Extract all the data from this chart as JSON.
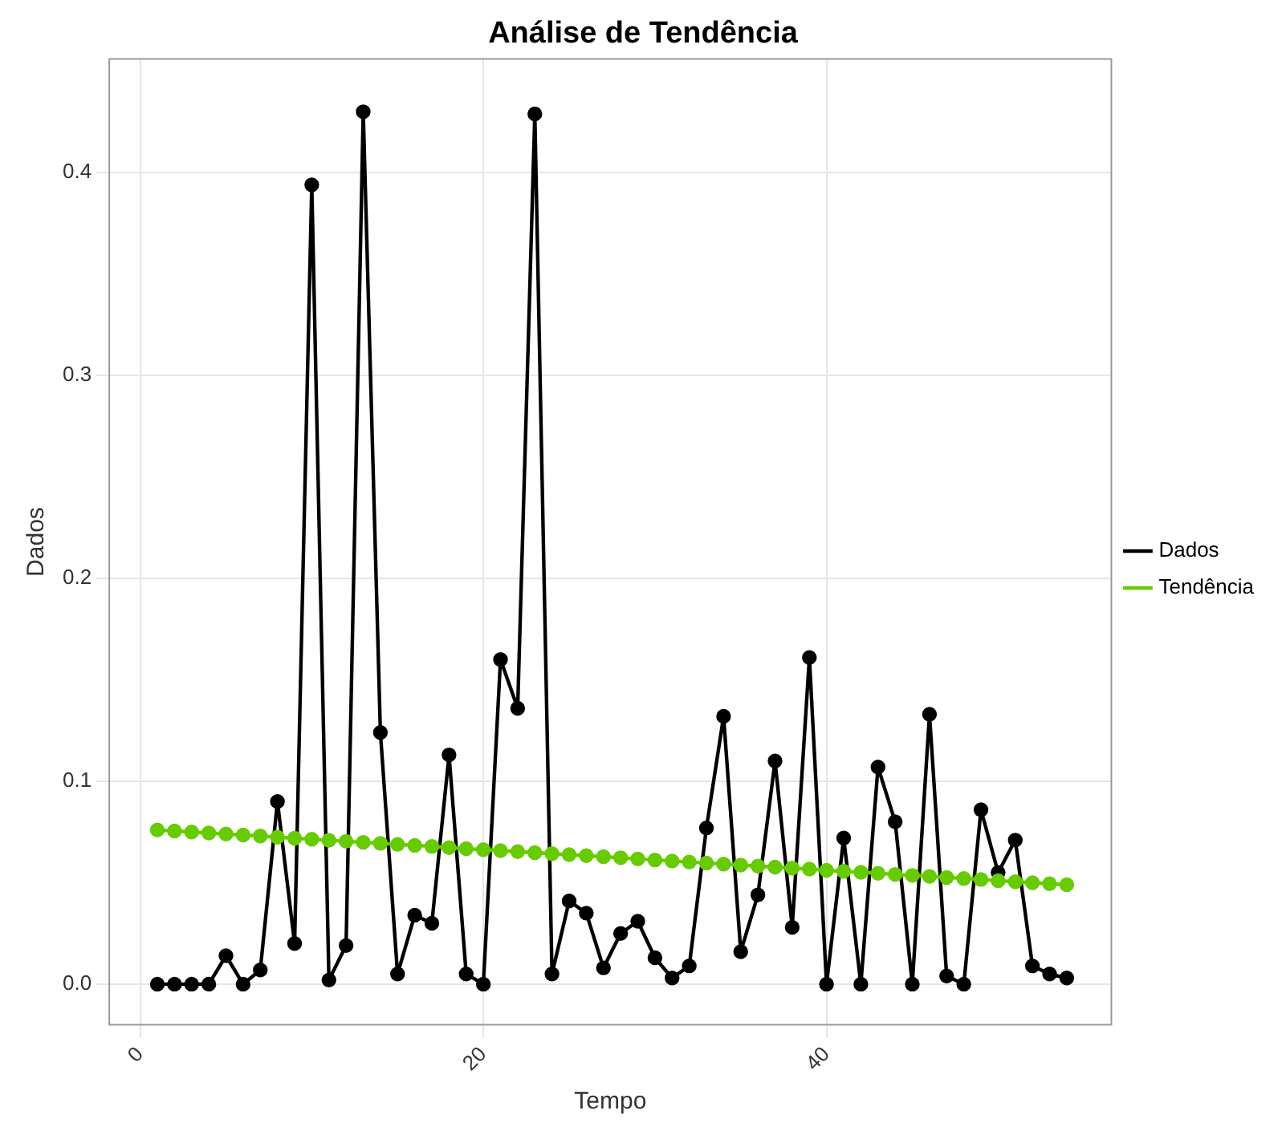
{
  "chart_data": {
    "type": "line",
    "title": "Análise de Tendência",
    "xlabel": "Tempo",
    "ylabel": "Dados",
    "x": [
      1,
      2,
      3,
      4,
      5,
      6,
      7,
      8,
      9,
      10,
      11,
      12,
      13,
      14,
      15,
      16,
      17,
      18,
      19,
      20,
      21,
      22,
      23,
      24,
      25,
      26,
      27,
      28,
      29,
      30,
      31,
      32,
      33,
      34,
      35,
      36,
      37,
      38,
      39,
      40,
      41,
      42,
      43,
      44,
      45,
      46,
      47,
      48,
      49,
      50,
      51,
      52,
      53,
      54
    ],
    "series": [
      {
        "name": "Dados",
        "color": "#000000",
        "values": [
          0,
          0,
          0,
          0,
          0.014,
          0,
          0.007,
          0.09,
          0.02,
          0.394,
          0.002,
          0.019,
          0.43,
          0.124,
          0.005,
          0.034,
          0.03,
          0.113,
          0.005,
          0,
          0.16,
          0.136,
          0.429,
          0.005,
          0.041,
          0.035,
          0.008,
          0.025,
          0.031,
          0.013,
          0.003,
          0.009,
          0.077,
          0.132,
          0.016,
          0.044,
          0.11,
          0.028,
          0.161,
          0,
          0.072,
          0,
          0.107,
          0.08,
          0,
          0.133,
          0.004,
          0,
          0.086,
          0.055,
          0.071,
          0.009,
          0.005,
          0.003
        ]
      },
      {
        "name": "Tendência",
        "color": "#66cc00",
        "values": [
          0.076,
          0.0755,
          0.075,
          0.0745,
          0.074,
          0.0735,
          0.073,
          0.0724,
          0.0719,
          0.0714,
          0.0709,
          0.0704,
          0.0699,
          0.0694,
          0.0689,
          0.0684,
          0.0679,
          0.0673,
          0.0668,
          0.0663,
          0.0658,
          0.0653,
          0.0648,
          0.0643,
          0.0638,
          0.0633,
          0.0628,
          0.0623,
          0.0617,
          0.0612,
          0.0607,
          0.0602,
          0.0597,
          0.0592,
          0.0587,
          0.0582,
          0.0577,
          0.0572,
          0.0567,
          0.0561,
          0.0556,
          0.0551,
          0.0546,
          0.0541,
          0.0536,
          0.0531,
          0.0526,
          0.0521,
          0.0516,
          0.051,
          0.0505,
          0.05,
          0.0495,
          0.049
        ]
      }
    ],
    "xlim": [
      -1.8,
      56.6
    ],
    "xticks": [
      0,
      20,
      40
    ],
    "ylim": [
      -0.02,
      0.456
    ],
    "yticks": [
      {
        "value": 0,
        "label": "0.0"
      },
      {
        "value": 0.1,
        "label": "0.1"
      },
      {
        "value": 0.2,
        "label": "0.2"
      },
      {
        "value": 0.3,
        "label": "0.3"
      },
      {
        "value": 0.4,
        "label": "0.4"
      }
    ],
    "grid": true,
    "legend": "right",
    "marker": "circle",
    "line_style": "solid"
  }
}
